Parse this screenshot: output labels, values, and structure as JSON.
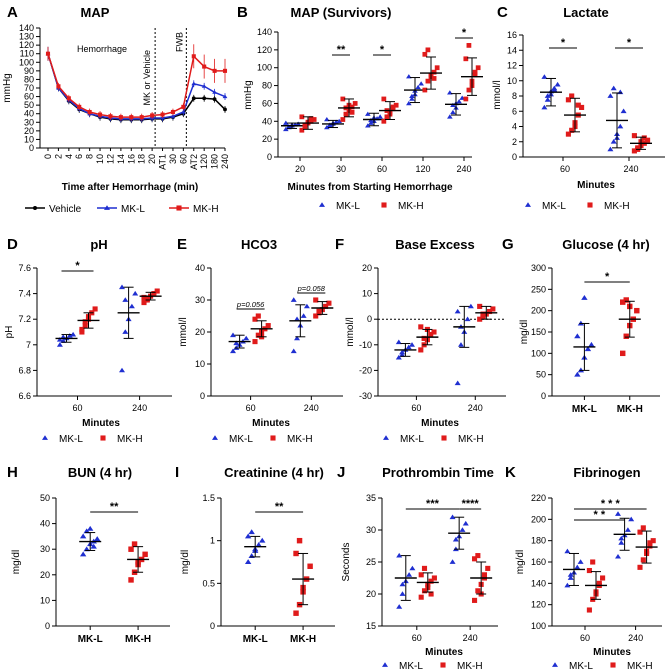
{
  "colors": {
    "mk_l": "#1f2fd1",
    "mk_h": "#e01b1b",
    "vehicle": "#000000"
  },
  "chart_data": [
    {
      "id": "A",
      "panel_label": "A",
      "type": "line",
      "title": "MAP",
      "ylabel": "mmHg",
      "xlabel": "Time after Hemorrhage (min)",
      "ylim": [
        0,
        140
      ],
      "yticks": [
        0,
        10,
        20,
        30,
        40,
        50,
        60,
        70,
        80,
        90,
        100,
        110,
        120,
        130,
        140
      ],
      "categories": [
        "0",
        "2",
        "4",
        "6",
        "8",
        "10",
        "12",
        "14",
        "16",
        "18",
        "20",
        "AT1",
        "30",
        "60",
        "AT2",
        "120",
        "180",
        "240"
      ],
      "annotations": {
        "hemorrhage": "Hemorrhage",
        "mk_or_vehicle": "MK or Vehicle",
        "fwb": "FWB"
      },
      "series": [
        {
          "name": "Vehicle",
          "values": [
            110,
            70,
            55,
            45,
            40,
            36,
            34,
            33,
            33,
            33,
            34,
            34,
            36,
            40,
            58,
            58,
            57,
            45
          ]
        },
        {
          "name": "MK-L",
          "values": [
            110,
            70,
            56,
            46,
            40,
            37,
            35,
            34,
            34,
            34,
            35,
            35,
            37,
            42,
            75,
            72,
            65,
            60
          ]
        },
        {
          "name": "MK-H",
          "values": [
            110,
            72,
            58,
            48,
            42,
            39,
            37,
            36,
            36,
            36,
            38,
            39,
            42,
            48,
            107,
            95,
            90,
            90
          ]
        }
      ],
      "legend": [
        "Vehicle",
        "MK-L",
        "MK-H"
      ]
    },
    {
      "id": "B",
      "panel_label": "B",
      "type": "scatter",
      "title": "MAP (Survivors)",
      "ylabel": "mmHg",
      "xlabel": "Minutes from Starting Hemorrhage",
      "ylim": [
        0,
        140
      ],
      "yticks": [
        0,
        20,
        40,
        60,
        80,
        100,
        120,
        140
      ],
      "categories": [
        "20",
        "30",
        "60",
        "120",
        "240"
      ],
      "series": [
        {
          "name": "MK-L",
          "mean": [
            35,
            37,
            42,
            75,
            59
          ],
          "sd": [
            3,
            4,
            7,
            14,
            12
          ],
          "points": [
            [
              31,
              33,
              35,
              36,
              37,
              38,
              34,
              36
            ],
            [
              33,
              35,
              37,
              39,
              40,
              42,
              36,
              38
            ],
            [
              35,
              38,
              40,
              43,
              45,
              48,
              41,
              44
            ],
            [
              60,
              65,
              70,
              78,
              82,
              90,
              68,
              74
            ],
            [
              45,
              50,
              55,
              62,
              66,
              72,
              58,
              60
            ]
          ]
        },
        {
          "name": "MK-H",
          "mean": [
            38,
            55,
            52,
            94,
            90
          ],
          "sd": [
            7,
            10,
            10,
            18,
            21
          ],
          "points": [
            [
              30,
              34,
              38,
              40,
              42,
              45,
              36,
              39,
              43
            ],
            [
              42,
              48,
              52,
              56,
              60,
              65,
              55,
              58,
              50
            ],
            [
              40,
              45,
              50,
              54,
              58,
              65,
              52,
              48,
              56
            ],
            [
              75,
              85,
              90,
              95,
              100,
              115,
              120,
              92,
              88
            ],
            [
              65,
              75,
              85,
              92,
              100,
              110,
              125,
              80,
              95
            ]
          ]
        }
      ],
      "significance": [
        {
          "label": "**",
          "category": "30"
        },
        {
          "label": "*",
          "category": "60"
        },
        {
          "label": "*",
          "category": "240"
        }
      ],
      "legend": [
        "MK-L",
        "MK-H"
      ]
    },
    {
      "id": "C",
      "panel_label": "C",
      "type": "scatter",
      "title": "Lactate",
      "ylabel": "mmol/l",
      "xlabel": "Minutes",
      "ylim": [
        0,
        16
      ],
      "yticks": [
        0,
        2,
        4,
        6,
        8,
        10,
        12,
        14,
        16
      ],
      "categories": [
        "60",
        "240"
      ],
      "series": [
        {
          "name": "MK-L",
          "mean": [
            8.5,
            4.8
          ],
          "sd": [
            1.8,
            3.6
          ],
          "points": [
            [
              6.5,
              7.5,
              8.2,
              8.8,
              9.5,
              10.5,
              8,
              8.6,
              9
            ],
            [
              1,
              2,
              3,
              4,
              6,
              8,
              9,
              2.5,
              8.5
            ]
          ]
        },
        {
          "name": "MK-H",
          "mean": [
            5.5,
            1.8
          ],
          "sd": [
            2.2,
            0.8
          ],
          "points": [
            [
              3,
              3.5,
              4.5,
              5.5,
              6.5,
              7.5,
              8,
              4,
              6.8
            ],
            [
              0.8,
              1.2,
              1.5,
              1.8,
              2.2,
              2.8,
              1,
              2,
              2.5
            ]
          ]
        }
      ],
      "significance": [
        {
          "label": "*",
          "category": "60"
        },
        {
          "label": "*",
          "category": "240"
        }
      ],
      "legend": [
        "MK-L",
        "MK-H"
      ]
    },
    {
      "id": "D",
      "panel_label": "D",
      "type": "scatter",
      "title": "pH",
      "ylabel": "pH",
      "xlabel": "Minutes",
      "ylim": [
        6.6,
        7.6
      ],
      "yticks": [
        6.6,
        6.8,
        7.0,
        7.2,
        7.4,
        7.6
      ],
      "categories": [
        "60",
        "240"
      ],
      "series": [
        {
          "name": "MK-L",
          "mean": [
            7.05,
            7.25
          ],
          "sd": [
            0.03,
            0.2
          ],
          "points": [
            [
              7.0,
              7.03,
              7.05,
              7.07,
              7.08,
              7.04,
              7.06
            ],
            [
              6.8,
              7.1,
              7.2,
              7.3,
              7.4,
              7.45,
              7.35
            ]
          ]
        },
        {
          "name": "MK-H",
          "mean": [
            7.19,
            7.38
          ],
          "sd": [
            0.06,
            0.03
          ],
          "points": [
            [
              7.1,
              7.15,
              7.2,
              7.25,
              7.28,
              7.12,
              7.18,
              7.22
            ],
            [
              7.33,
              7.36,
              7.38,
              7.4,
              7.42,
              7.37,
              7.35
            ]
          ]
        }
      ],
      "significance": [
        {
          "label": "*",
          "category": "60"
        }
      ],
      "legend": [
        "MK-L",
        "MK-H"
      ]
    },
    {
      "id": "E",
      "panel_label": "E",
      "type": "scatter",
      "title": "HCO3",
      "ylabel": "mmol/l",
      "xlabel": "Minutes",
      "ylim": [
        0,
        40
      ],
      "yticks": [
        0,
        10,
        20,
        30,
        40
      ],
      "categories": [
        "60",
        "240"
      ],
      "series": [
        {
          "name": "MK-L",
          "mean": [
            17,
            23.5
          ],
          "sd": [
            2,
            5
          ],
          "points": [
            [
              14,
              15,
              16,
              17,
              18,
              19,
              16.5
            ],
            [
              14,
              18,
              22,
              25,
              28,
              30,
              24
            ]
          ]
        },
        {
          "name": "MK-H",
          "mean": [
            21,
            27.5
          ],
          "sd": [
            2.5,
            2
          ],
          "points": [
            [
              17,
              19,
              20,
              21,
              22,
              24,
              25,
              18.5
            ],
            [
              25,
              26,
              27,
              28,
              29,
              30,
              26.5
            ]
          ]
        }
      ],
      "significance": [
        {
          "label": "p=0.056",
          "category": "60"
        },
        {
          "label": "p=0.058",
          "category": "240"
        }
      ],
      "legend": [
        "MK-L",
        "MK-H"
      ]
    },
    {
      "id": "F",
      "panel_label": "F",
      "type": "scatter",
      "title": "Base Excess",
      "ylabel": "mmol/l",
      "xlabel": "Minutes",
      "ylim": [
        -30,
        20
      ],
      "yticks": [
        -30,
        -20,
        -10,
        0,
        10,
        20
      ],
      "categories": [
        "60",
        "240"
      ],
      "series": [
        {
          "name": "MK-L",
          "mean": [
            -12,
            -3
          ],
          "sd": [
            2.5,
            8
          ],
          "points": [
            [
              -15,
              -13,
              -12,
              -11,
              -10,
              -9,
              -14
            ],
            [
              -25,
              -10,
              -5,
              0,
              5,
              3,
              -3
            ]
          ]
        },
        {
          "name": "MK-H",
          "mean": [
            -7,
            2.5
          ],
          "sd": [
            3,
            2.5
          ],
          "points": [
            [
              -12,
              -10,
              -8,
              -6,
              -5,
              -3,
              -7.5,
              -4
            ],
            [
              0,
              1,
              2,
              3,
              4,
              5,
              2
            ]
          ]
        }
      ],
      "legend": [
        "MK-L",
        "MK-H"
      ]
    },
    {
      "id": "G",
      "panel_label": "G",
      "type": "scatter",
      "title": "Glucose (4 hr)",
      "ylabel": "mg/dl",
      "xlabel": "",
      "ylim": [
        0,
        300
      ],
      "yticks": [
        0,
        50,
        100,
        150,
        200,
        250,
        300
      ],
      "categories": [
        "MK-L",
        "MK-H"
      ],
      "series": [
        {
          "name": "MK-L",
          "mean": [
            115
          ],
          "sd": [
            55
          ],
          "points": [
            [
              50,
              60,
              90,
              110,
              120,
              140,
              170,
              230
            ]
          ]
        },
        {
          "name": "MK-H",
          "mean": [
            180
          ],
          "sd": [
            42
          ],
          "points": [
            [
              100,
              140,
              165,
              180,
              200,
              220,
              225,
              210
            ]
          ]
        }
      ],
      "significance": [
        {
          "label": "*",
          "category": "both"
        }
      ],
      "legend": [
        "MK-L",
        "MK-H"
      ]
    },
    {
      "id": "H",
      "panel_label": "H",
      "type": "scatter",
      "title": "BUN (4 hr)",
      "ylabel": "mg/dl",
      "xlabel": "",
      "ylim": [
        0,
        50
      ],
      "yticks": [
        0,
        10,
        20,
        30,
        40,
        50
      ],
      "categories": [
        "MK-L",
        "MK-H"
      ],
      "series": [
        {
          "name": "MK-L",
          "mean": [
            33
          ],
          "sd": [
            3.5
          ],
          "points": [
            [
              28,
              30,
              32,
              33,
              34,
              35,
              37,
              38,
              31
            ]
          ]
        },
        {
          "name": "MK-H",
          "mean": [
            26
          ],
          "sd": [
            5
          ],
          "points": [
            [
              18,
              21,
              24,
              26,
              28,
              30,
              32,
              25
            ]
          ]
        }
      ],
      "significance": [
        {
          "label": "**",
          "category": "both"
        }
      ],
      "legend": [
        "MK-L",
        "MK-H"
      ]
    },
    {
      "id": "I",
      "panel_label": "I",
      "type": "scatter",
      "title": "Creatinine (4 hr)",
      "ylabel": "mg/dl",
      "xlabel": "",
      "ylim": [
        0,
        1.5
      ],
      "yticks": [
        0,
        0.5,
        1.0,
        1.5
      ],
      "categories": [
        "MK-L",
        "MK-H"
      ],
      "series": [
        {
          "name": "MK-L",
          "mean": [
            0.93
          ],
          "sd": [
            0.12
          ],
          "points": [
            [
              0.75,
              0.82,
              0.9,
              0.95,
              1.0,
              1.05,
              1.1,
              0.88
            ]
          ]
        },
        {
          "name": "MK-H",
          "mean": [
            0.55
          ],
          "sd": [
            0.3
          ],
          "points": [
            [
              0.15,
              0.25,
              0.4,
              0.55,
              0.7,
              0.85,
              1.0,
              0.45
            ]
          ]
        }
      ],
      "significance": [
        {
          "label": "**",
          "category": "both"
        }
      ],
      "legend": [
        "MK-L",
        "MK-H"
      ]
    },
    {
      "id": "J",
      "panel_label": "J",
      "type": "scatter",
      "title": "Prothrombin Time",
      "ylabel": "Seconds",
      "xlabel": "Minutes",
      "ylim": [
        15,
        35
      ],
      "yticks": [
        15,
        20,
        25,
        30,
        35
      ],
      "categories": [
        "60",
        "240"
      ],
      "series": [
        {
          "name": "MK-L",
          "mean": [
            22.5,
            29.5
          ],
          "sd": [
            3.5,
            2.5
          ],
          "points": [
            [
              18,
              20,
              22,
              23,
              24,
              26,
              21.5
            ],
            [
              25,
              27,
              29,
              30,
              31,
              32,
              28.5
            ]
          ]
        },
        {
          "name": "MK-H",
          "mean": [
            21.8,
            22.5
          ],
          "sd": [
            1.5,
            2.5
          ],
          "points": [
            [
              19.5,
              20.5,
              21,
              22,
              22.5,
              23,
              24,
              21.5,
              20
            ],
            [
              19,
              20.5,
              21.5,
              22.5,
              24,
              25.5,
              26,
              20,
              23
            ]
          ]
        }
      ],
      "significance": [
        {
          "label": "***",
          "category": "MK-L 60 vs MK-L 240"
        },
        {
          "label": "****",
          "category": "240"
        }
      ],
      "legend": [
        "MK-L",
        "MK-H"
      ]
    },
    {
      "id": "K",
      "panel_label": "K",
      "type": "scatter",
      "title": "Fibrinogen",
      "ylabel": "mg/dl",
      "xlabel": "Minutes",
      "ylim": [
        100,
        220
      ],
      "yticks": [
        100,
        120,
        140,
        160,
        180,
        200,
        220
      ],
      "categories": [
        "60",
        "240"
      ],
      "series": [
        {
          "name": "MK-L",
          "mean": [
            153,
            186
          ],
          "sd": [
            15,
            15
          ],
          "points": [
            [
              138,
              145,
              150,
              155,
              160,
              170,
              148
            ],
            [
              165,
              178,
              185,
              190,
              200,
              205,
              182
            ]
          ]
        },
        {
          "name": "MK-H",
          "mean": [
            138,
            174
          ],
          "sd": [
            13,
            15
          ],
          "points": [
            [
              115,
              125,
              132,
              138,
              145,
              152,
              160,
              130,
              140
            ],
            [
              155,
              162,
              168,
              175,
              180,
              188,
              192,
              170,
              178
            ]
          ]
        }
      ],
      "significance": [
        {
          "label": "* *",
          "category": "MK-L 60 vs MK-L 240"
        },
        {
          "label": "* * *",
          "category": "MK-L 60 vs MK-H 240"
        }
      ],
      "legend": [
        "MK-L",
        "MK-H"
      ]
    }
  ]
}
